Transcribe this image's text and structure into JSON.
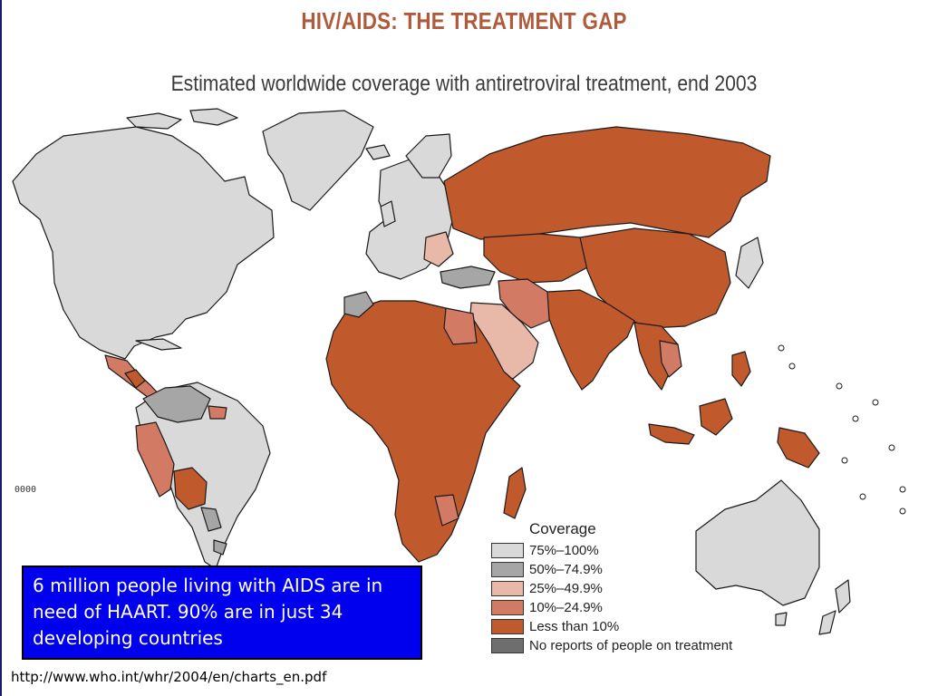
{
  "header": {
    "title": "HIV/AIDS: THE TREATMENT GAP",
    "subtitle": "Estimated worldwide coverage with antiretroviral treatment, end 2003"
  },
  "legend": {
    "title": "Coverage",
    "items": [
      {
        "label": "75%–100%",
        "color": "#d9d9d9"
      },
      {
        "label": "50%–74.9%",
        "color": "#a6a6a6"
      },
      {
        "label": "25%–49.9%",
        "color": "#e8b8a8"
      },
      {
        "label": "10%–24.9%",
        "color": "#d27a64"
      },
      {
        "label": "Less than 10%",
        "color": "#c05a2c"
      },
      {
        "label": "No reports of people on treatment",
        "color": "#6e6e6e"
      }
    ]
  },
  "callout": {
    "text": "6 million people living with AIDS are in need of HAART. 90% are in just 34 developing countries"
  },
  "source": {
    "text": "http://www.who.int/whr/2004/en/charts_en.pdf"
  },
  "side_mark": "0000"
}
